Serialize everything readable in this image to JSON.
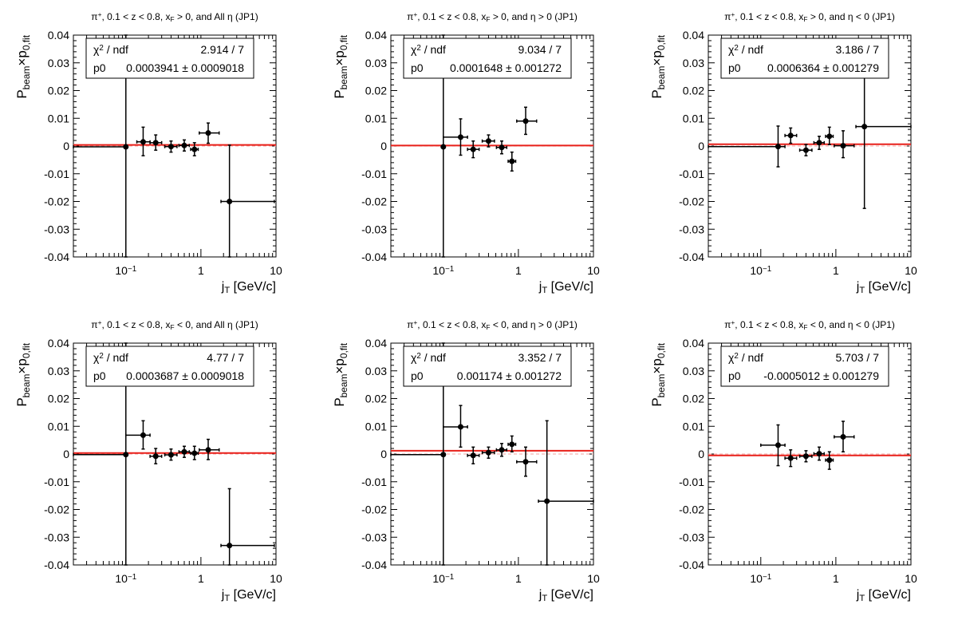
{
  "figure": {
    "xlabel": "j_T [GeV/c]",
    "ylabel": "P_beam×p_0,fit",
    "x_tick_labels": [
      "10^-1",
      "1",
      "10"
    ],
    "y_tick_labels": [
      "0.04",
      "0.03",
      "0.02",
      "0.01",
      "0",
      "-0.01",
      "-0.02",
      "-0.03",
      "-0.04"
    ],
    "stat_labels": {
      "chi2": "χ2 / ndf",
      "p0": "p0"
    },
    "colors": {
      "fit_line": "#e8201a",
      "zero_line": "#f3a3a0",
      "points": "#000000"
    }
  },
  "chart_data": [
    {
      "type": "scatter",
      "title": "π+, 0.1 < z < 0.8, xF > 0, and All η (JP1)",
      "xscale": "log",
      "xlim": [
        0.02,
        10
      ],
      "ylim": [
        -0.04,
        0.04
      ],
      "chi2_ndf": "2.914 / 7",
      "p0": "0.0003941 ± 0.0009018",
      "fit_value": 0.0003941,
      "points": [
        {
          "x": 0.1,
          "y": -0.0003,
          "xlow": 0.02,
          "xhigh": 0.1,
          "ylow": -0.04,
          "yhigh": 0.04
        },
        {
          "x": 0.17,
          "y": 0.0015,
          "xlow": 0.14,
          "xhigh": 0.21,
          "ylow": -0.0035,
          "yhigh": 0.0068
        },
        {
          "x": 0.25,
          "y": 0.0012,
          "xlow": 0.21,
          "xhigh": 0.3,
          "ylow": -0.0015,
          "yhigh": 0.004
        },
        {
          "x": 0.4,
          "y": -0.0002,
          "xlow": 0.33,
          "xhigh": 0.48,
          "ylow": -0.0022,
          "yhigh": 0.0018
        },
        {
          "x": 0.6,
          "y": 0.0002,
          "xlow": 0.51,
          "xhigh": 0.7,
          "ylow": -0.0018,
          "yhigh": 0.0022
        },
        {
          "x": 0.82,
          "y": -0.0012,
          "xlow": 0.73,
          "xhigh": 0.92,
          "ylow": -0.0035,
          "yhigh": 0.0012
        },
        {
          "x": 1.25,
          "y": 0.0047,
          "xlow": 0.95,
          "xhigh": 1.75,
          "ylow": 0.001,
          "yhigh": 0.0083
        },
        {
          "x": 2.4,
          "y": -0.02,
          "xlow": 1.85,
          "xhigh": 9.5,
          "ylow": -0.04,
          "yhigh": 0.0003
        }
      ]
    },
    {
      "type": "scatter",
      "title": "π+, 0.1 < z < 0.8, xF > 0, and η > 0 (JP1)",
      "xscale": "log",
      "xlim": [
        0.02,
        10
      ],
      "ylim": [
        -0.04,
        0.04
      ],
      "chi2_ndf": "9.034 / 7",
      "p0": "0.0001648 ± 0.001272",
      "fit_value": 0.0001648,
      "points": [
        {
          "x": 0.1,
          "y": -0.0003,
          "xlow": 0.1,
          "xhigh": 0.1,
          "ylow": -0.04,
          "yhigh": 0.04
        },
        {
          "x": 0.17,
          "y": 0.0032,
          "xlow": 0.1,
          "xhigh": 0.21,
          "ylow": -0.0033,
          "yhigh": 0.0098
        },
        {
          "x": 0.25,
          "y": -0.0012,
          "xlow": 0.21,
          "xhigh": 0.3,
          "ylow": -0.0042,
          "yhigh": 0.0018
        },
        {
          "x": 0.4,
          "y": 0.0018,
          "xlow": 0.33,
          "xhigh": 0.48,
          "ylow": -0.0003,
          "yhigh": 0.004
        },
        {
          "x": 0.6,
          "y": -0.0005,
          "xlow": 0.51,
          "xhigh": 0.7,
          "ylow": -0.0028,
          "yhigh": 0.0018
        },
        {
          "x": 0.82,
          "y": -0.0055,
          "xlow": 0.73,
          "xhigh": 0.92,
          "ylow": -0.009,
          "yhigh": -0.0022
        },
        {
          "x": 1.25,
          "y": 0.009,
          "xlow": 0.95,
          "xhigh": 1.75,
          "ylow": 0.0042,
          "yhigh": 0.014
        }
      ]
    },
    {
      "type": "scatter",
      "title": "π+, 0.1 < z < 0.8, xF > 0, and η < 0 (JP1)",
      "xscale": "log",
      "xlim": [
        0.02,
        10
      ],
      "ylim": [
        -0.04,
        0.04
      ],
      "chi2_ndf": "3.186 / 7",
      "p0": "0.0006364 ± 0.001279",
      "fit_value": 0.0006364,
      "points": [
        {
          "x": 0.17,
          "y": -0.0002,
          "xlow": 0.02,
          "xhigh": 0.21,
          "ylow": -0.0075,
          "yhigh": 0.0072
        },
        {
          "x": 0.25,
          "y": 0.0038,
          "xlow": 0.21,
          "xhigh": 0.3,
          "ylow": 0.001,
          "yhigh": 0.0065
        },
        {
          "x": 0.4,
          "y": -0.0015,
          "xlow": 0.33,
          "xhigh": 0.48,
          "ylow": -0.0035,
          "yhigh": 0.0005
        },
        {
          "x": 0.6,
          "y": 0.0012,
          "xlow": 0.51,
          "xhigh": 0.7,
          "ylow": -0.0012,
          "yhigh": 0.0035
        },
        {
          "x": 0.82,
          "y": 0.0035,
          "xlow": 0.73,
          "xhigh": 0.92,
          "ylow": 0.0005,
          "yhigh": 0.0068
        },
        {
          "x": 1.25,
          "y": 0.0001,
          "xlow": 0.95,
          "xhigh": 1.75,
          "ylow": -0.0042,
          "yhigh": 0.0055
        },
        {
          "x": 2.4,
          "y": 0.007,
          "xlow": 1.85,
          "xhigh": 10,
          "ylow": -0.0225,
          "yhigh": 0.0365
        }
      ]
    },
    {
      "type": "scatter",
      "title": "π+, 0.1 < z < 0.8, xF < 0, and All η (JP1)",
      "xscale": "log",
      "xlim": [
        0.02,
        10
      ],
      "ylim": [
        -0.04,
        0.04
      ],
      "chi2_ndf": "4.77 / 7",
      "p0": "0.0003687 ± 0.0009018",
      "fit_value": 0.0003687,
      "points": [
        {
          "x": 0.1,
          "y": -0.0002,
          "xlow": 0.02,
          "xhigh": 0.1,
          "ylow": -0.04,
          "yhigh": 0.04
        },
        {
          "x": 0.17,
          "y": 0.0068,
          "xlow": 0.1,
          "xhigh": 0.21,
          "ylow": 0.0018,
          "yhigh": 0.012
        },
        {
          "x": 0.25,
          "y": -0.0008,
          "xlow": 0.21,
          "xhigh": 0.3,
          "ylow": -0.0035,
          "yhigh": 0.002
        },
        {
          "x": 0.4,
          "y": -0.0003,
          "xlow": 0.33,
          "xhigh": 0.48,
          "ylow": -0.0022,
          "yhigh": 0.0018
        },
        {
          "x": 0.6,
          "y": 0.0008,
          "xlow": 0.51,
          "xhigh": 0.7,
          "ylow": -0.0012,
          "yhigh": 0.0028
        },
        {
          "x": 0.82,
          "y": 0.0003,
          "xlow": 0.73,
          "xhigh": 0.92,
          "ylow": -0.002,
          "yhigh": 0.0028
        },
        {
          "x": 1.25,
          "y": 0.0015,
          "xlow": 0.95,
          "xhigh": 1.75,
          "ylow": -0.002,
          "yhigh": 0.0053
        },
        {
          "x": 2.4,
          "y": -0.033,
          "xlow": 1.85,
          "xhigh": 9.5,
          "ylow": -0.04,
          "yhigh": -0.0125
        }
      ]
    },
    {
      "type": "scatter",
      "title": "π+, 0.1 < z < 0.8, xF < 0, and η > 0 (JP1)",
      "xscale": "log",
      "xlim": [
        0.02,
        10
      ],
      "ylim": [
        -0.04,
        0.04
      ],
      "chi2_ndf": "3.352 / 7",
      "p0": "0.001174 ± 0.001272",
      "fit_value": 0.001174,
      "points": [
        {
          "x": 0.1,
          "y": -0.0002,
          "xlow": 0.02,
          "xhigh": 0.1,
          "ylow": -0.04,
          "yhigh": 0.04
        },
        {
          "x": 0.17,
          "y": 0.0098,
          "xlow": 0.1,
          "xhigh": 0.21,
          "ylow": 0.0025,
          "yhigh": 0.0175
        },
        {
          "x": 0.25,
          "y": -0.0005,
          "xlow": 0.21,
          "xhigh": 0.3,
          "ylow": -0.0035,
          "yhigh": 0.0025
        },
        {
          "x": 0.4,
          "y": 0.0005,
          "xlow": 0.33,
          "xhigh": 0.48,
          "ylow": -0.0015,
          "yhigh": 0.0025
        },
        {
          "x": 0.6,
          "y": 0.0015,
          "xlow": 0.51,
          "xhigh": 0.7,
          "ylow": -0.0008,
          "yhigh": 0.0038
        },
        {
          "x": 0.82,
          "y": 0.0035,
          "xlow": 0.73,
          "xhigh": 0.92,
          "ylow": 0.0008,
          "yhigh": 0.0065
        },
        {
          "x": 1.25,
          "y": -0.0028,
          "xlow": 0.95,
          "xhigh": 1.75,
          "ylow": -0.008,
          "yhigh": 0.0025
        },
        {
          "x": 2.4,
          "y": -0.017,
          "xlow": 1.85,
          "xhigh": 10,
          "ylow": -0.04,
          "yhigh": 0.012
        }
      ]
    },
    {
      "type": "scatter",
      "title": "π+, 0.1 < z < 0.8, xF < 0, and η < 0 (JP1)",
      "xscale": "log",
      "xlim": [
        0.02,
        10
      ],
      "ylim": [
        -0.04,
        0.04
      ],
      "chi2_ndf": "5.703 / 7",
      "p0": "-0.0005012 ± 0.001279",
      "fit_value": -0.0005012,
      "points": [
        {
          "x": 0.17,
          "y": 0.0032,
          "xlow": 0.1,
          "xhigh": 0.21,
          "ylow": -0.0042,
          "yhigh": 0.0105
        },
        {
          "x": 0.25,
          "y": -0.0015,
          "xlow": 0.21,
          "xhigh": 0.3,
          "ylow": -0.0045,
          "yhigh": 0.0015
        },
        {
          "x": 0.4,
          "y": -0.0008,
          "xlow": 0.33,
          "xhigh": 0.48,
          "ylow": -0.0028,
          "yhigh": 0.0012
        },
        {
          "x": 0.6,
          "y": 0.0001,
          "xlow": 0.51,
          "xhigh": 0.7,
          "ylow": -0.0022,
          "yhigh": 0.0025
        },
        {
          "x": 0.82,
          "y": -0.0022,
          "xlow": 0.73,
          "xhigh": 0.92,
          "ylow": -0.0055,
          "yhigh": 0.0008
        },
        {
          "x": 1.25,
          "y": 0.0062,
          "xlow": 0.95,
          "xhigh": 1.75,
          "ylow": 0.0008,
          "yhigh": 0.0118
        }
      ]
    }
  ]
}
